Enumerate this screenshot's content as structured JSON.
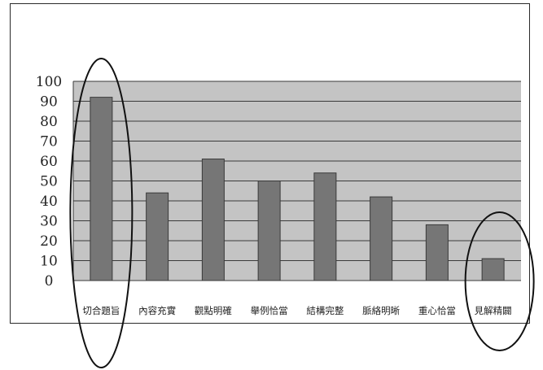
{
  "colors": {
    "plot_area": "#c4c4c4",
    "bar_fill": "#767676",
    "bar_stroke": "#3a3a3a",
    "gridline": "#3a3a3a",
    "annotation": "#111111"
  },
  "chart_data": {
    "type": "bar",
    "title": "",
    "xlabel": "",
    "ylabel": "",
    "categories": [
      "切合題旨",
      "內容充實",
      "觀點明確",
      "舉例恰當",
      "結構完整",
      "脈絡明晰",
      "重心恰當",
      "見解精闢"
    ],
    "values": [
      92,
      44,
      61,
      50,
      54,
      42,
      28,
      11
    ],
    "ylim": [
      0,
      100
    ],
    "y_ticks": [
      "0",
      "10",
      "20",
      "30",
      "40",
      "50",
      "60",
      "70",
      "80",
      "90",
      "100"
    ],
    "grid": true,
    "legend": "none",
    "annotations": [
      {
        "type": "hand-drawn ellipse",
        "encircles": "切合題旨"
      },
      {
        "type": "hand-drawn ellipse",
        "encircles": "見解精闢"
      }
    ]
  }
}
